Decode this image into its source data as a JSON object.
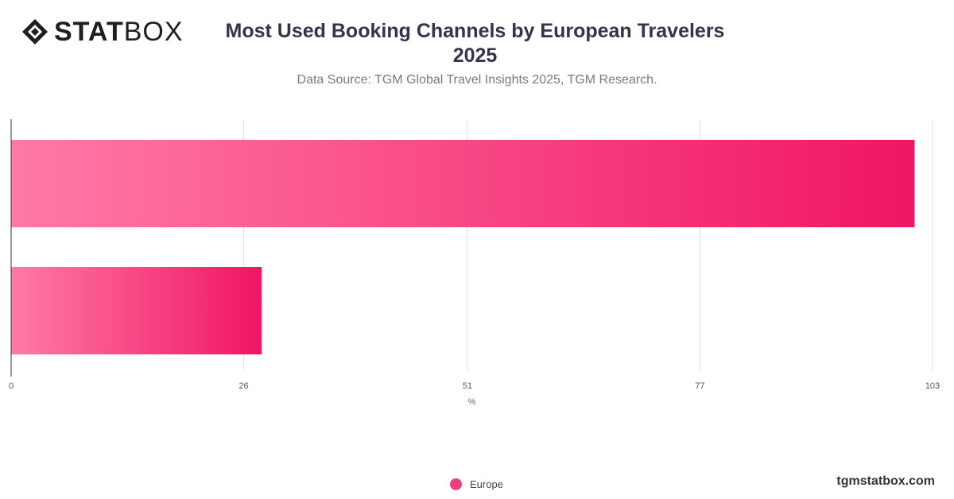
{
  "header": {
    "logo_text_bold": "STAT",
    "logo_text_light": "BOX",
    "title_line1": "Most Used Booking Channels by European Travelers",
    "title_line2": "2025",
    "subtitle": "Data Source: TGM Global Travel Insights 2025, TGM Research."
  },
  "chart_data": {
    "type": "bar",
    "orientation": "horizontal",
    "categories": [
      "",
      ""
    ],
    "series": [
      {
        "name": "Europe",
        "values": [
          101,
          28
        ],
        "color": "#f01565"
      }
    ],
    "xlim": [
      0,
      103
    ],
    "xticks": [
      "0",
      "26",
      "51",
      "77",
      "103"
    ],
    "xlabel": "%",
    "grid": true,
    "legend_position": "bottom-center"
  },
  "legend": {
    "label": "Europe"
  },
  "footer": {
    "watermark": "tgmstatbox.com"
  }
}
